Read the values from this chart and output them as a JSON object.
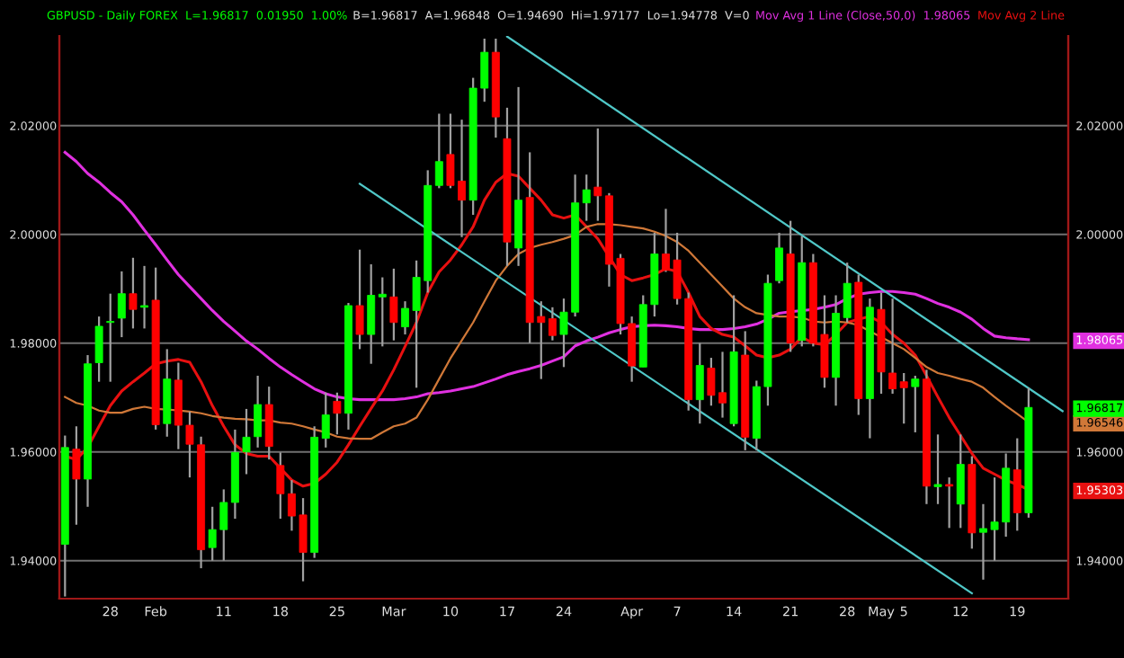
{
  "chart_data": {
    "type": "candlestick",
    "title": "GBPUSD - Daily FOREX  L=1.96817  0.01950  1.00%",
    "subtitle": "B=1.96817  A=1.96848  O=1.94690  Hi=1.97177  Lo=1.94778  V=0",
    "categories": [
      null,
      null,
      null,
      null,
      "28",
      null,
      null,
      null,
      "Feb",
      null,
      null,
      null,
      null,
      null,
      "11",
      null,
      null,
      null,
      null,
      "18",
      null,
      null,
      null,
      null,
      "25",
      null,
      null,
      null,
      null,
      "Mar",
      null,
      null,
      null,
      null,
      "10",
      null,
      null,
      null,
      null,
      "17",
      null,
      null,
      null,
      null,
      "24",
      null,
      null,
      null,
      null,
      null,
      "Apr",
      null,
      null,
      null,
      "7",
      null,
      null,
      null,
      null,
      "14",
      null,
      null,
      null,
      null,
      "21",
      null,
      null,
      null,
      null,
      "28",
      null,
      null,
      "May",
      null,
      "5",
      null,
      null,
      null,
      null,
      "12",
      null,
      null,
      null,
      null,
      "19",
      null,
      null,
      null,
      null
    ],
    "ohlc": [
      [
        1.943,
        1.963,
        1.9334,
        1.9608
      ],
      [
        1.9605,
        1.9647,
        1.9466,
        1.955
      ],
      [
        1.955,
        1.9778,
        1.9499,
        1.9762
      ],
      [
        1.9764,
        1.9849,
        1.9729,
        1.9831
      ],
      [
        1.9838,
        1.9891,
        1.9729,
        1.984
      ],
      [
        1.9846,
        1.9932,
        1.9811,
        1.9891
      ],
      [
        1.9891,
        1.9957,
        1.9827,
        1.9862
      ],
      [
        1.9866,
        1.9942,
        1.9827,
        1.9869
      ],
      [
        1.9879,
        1.9939,
        1.9641,
        1.965
      ],
      [
        1.9652,
        1.9789,
        1.9628,
        1.9734
      ],
      [
        1.9732,
        1.9764,
        1.9605,
        1.9649
      ],
      [
        1.9649,
        1.9674,
        1.9553,
        1.9614
      ],
      [
        1.9613,
        1.9628,
        1.9386,
        1.942
      ],
      [
        1.9424,
        1.9499,
        1.94,
        1.9457
      ],
      [
        1.9457,
        1.9531,
        1.94,
        1.9507
      ],
      [
        1.9507,
        1.9641,
        1.9477,
        1.9599
      ],
      [
        1.96,
        1.9679,
        1.9559,
        1.9627
      ],
      [
        1.9628,
        1.974,
        1.9608,
        1.9687
      ],
      [
        1.9687,
        1.972,
        1.9586,
        1.961
      ],
      [
        1.9575,
        1.9599,
        1.9477,
        1.9523
      ],
      [
        1.9523,
        1.9548,
        1.9455,
        1.9482
      ],
      [
        1.9484,
        1.9515,
        1.9362,
        1.9415
      ],
      [
        1.9415,
        1.9647,
        1.9405,
        1.9627
      ],
      [
        1.9625,
        1.9709,
        1.9608,
        1.9668
      ],
      [
        1.9693,
        1.9709,
        1.9632,
        1.9671
      ],
      [
        1.9671,
        1.9874,
        1.9641,
        1.9869
      ],
      [
        1.9869,
        1.9972,
        1.9789,
        1.9816
      ],
      [
        1.9816,
        1.9945,
        1.9762,
        1.9888
      ],
      [
        1.9885,
        1.9921,
        1.9794,
        1.989
      ],
      [
        1.9885,
        1.9937,
        1.9805,
        1.9838
      ],
      [
        1.983,
        1.9877,
        1.9816,
        1.9864
      ],
      [
        1.986,
        1.9952,
        1.9718,
        1.9921
      ],
      [
        1.9915,
        2.0118,
        1.9893,
        2.009
      ],
      [
        2.009,
        2.0222,
        2.0085,
        2.0134
      ],
      [
        2.0147,
        2.0222,
        2.0085,
        2.009
      ],
      [
        2.0098,
        2.0211,
        1.9995,
        2.0063
      ],
      [
        2.0063,
        2.0288,
        2.0036,
        2.0269
      ],
      [
        2.0269,
        2.036,
        2.0244,
        2.0335
      ],
      [
        2.0335,
        2.036,
        2.0178,
        2.0216
      ],
      [
        2.0176,
        2.0233,
        1.9942,
        1.9986
      ],
      [
        1.9975,
        2.0271,
        1.9942,
        2.0063
      ],
      [
        2.0068,
        2.0151,
        1.98,
        1.9838
      ],
      [
        1.9849,
        1.9877,
        1.9734,
        1.9838
      ],
      [
        1.9845,
        1.9866,
        1.9805,
        1.9814
      ],
      [
        1.9816,
        1.9882,
        1.9756,
        1.9857
      ],
      [
        1.9857,
        2.011,
        1.9849,
        2.0058
      ],
      [
        2.0058,
        2.011,
        2.0025,
        2.0082
      ],
      [
        2.0087,
        2.0195,
        2.0025,
        2.0071
      ],
      [
        2.0071,
        2.0076,
        1.9904,
        1.9945
      ],
      [
        1.9956,
        1.9964,
        1.9816,
        1.9836
      ],
      [
        1.9836,
        1.9849,
        1.9729,
        1.9758
      ],
      [
        1.9756,
        1.9888,
        1.9756,
        1.9871
      ],
      [
        1.9871,
        2.0003,
        1.9849,
        1.9964
      ],
      [
        1.9964,
        2.0047,
        1.9931,
        1.9934
      ],
      [
        1.9953,
        2.0003,
        1.9871,
        1.9882
      ],
      [
        1.9882,
        1.9893,
        1.9676,
        1.9696
      ],
      [
        1.9696,
        1.98,
        1.9652,
        1.9759
      ],
      [
        1.9754,
        1.9773,
        1.9685,
        1.9704
      ],
      [
        1.9709,
        1.9784,
        1.9663,
        1.969
      ],
      [
        1.9652,
        1.9888,
        1.9647,
        1.9784
      ],
      [
        1.9778,
        1.9822,
        1.9603,
        1.9627
      ],
      [
        1.9625,
        1.9731,
        1.9603,
        1.972
      ],
      [
        1.972,
        1.9926,
        1.9685,
        1.991
      ],
      [
        1.9915,
        2.0003,
        1.991,
        1.9975
      ],
      [
        1.9964,
        2.0025,
        1.9784,
        1.98
      ],
      [
        1.9805,
        1.9997,
        1.9794,
        1.9948
      ],
      [
        1.9948,
        1.9964,
        1.9794,
        1.98
      ],
      [
        1.9816,
        1.9888,
        1.9718,
        1.9737
      ],
      [
        1.9737,
        1.9888,
        1.9685,
        1.9855
      ],
      [
        1.9847,
        1.9948,
        1.9838,
        1.991
      ],
      [
        1.9912,
        1.9926,
        1.9668,
        1.9698
      ],
      [
        1.9698,
        1.9882,
        1.9625,
        1.9866
      ],
      [
        1.9862,
        1.9893,
        1.9707,
        1.9747
      ],
      [
        1.9745,
        1.9882,
        1.9707,
        1.9716
      ],
      [
        1.9729,
        1.9745,
        1.9652,
        1.9718
      ],
      [
        1.972,
        1.974,
        1.9636,
        1.9734
      ],
      [
        1.9734,
        1.9751,
        1.9504,
        1.9537
      ],
      [
        1.9536,
        1.9632,
        1.9504,
        1.954
      ],
      [
        1.954,
        1.9553,
        1.946,
        1.9537
      ],
      [
        1.9504,
        1.9632,
        1.946,
        1.9577
      ],
      [
        1.9577,
        1.9592,
        1.9422,
        1.9451
      ],
      [
        1.9452,
        1.9504,
        1.9365,
        1.9459
      ],
      [
        1.9457,
        1.9553,
        1.94,
        1.9471
      ],
      [
        1.9471,
        1.9597,
        1.9444,
        1.957
      ],
      [
        1.9567,
        1.9625,
        1.9455,
        1.9488
      ],
      [
        1.9488,
        1.97177,
        1.9479,
        1.96817
      ],
      null,
      null,
      null
    ],
    "series": [
      {
        "type": "line",
        "name": "Mov Avg 1 Line (Close,50,0)",
        "color": "#e030e0",
        "values": [
          2.0151,
          2.0134,
          2.0112,
          2.0096,
          2.0077,
          2.006,
          2.0036,
          2.0008,
          1.9981,
          1.9953,
          1.9926,
          1.9904,
          1.9882,
          1.986,
          1.984,
          1.9822,
          1.9804,
          1.9789,
          1.9772,
          1.9756,
          1.9742,
          1.9729,
          1.9716,
          1.9707,
          1.9701,
          1.9698,
          1.9696,
          1.9696,
          1.9696,
          1.9696,
          1.9698,
          1.9701,
          1.9707,
          1.9709,
          1.9712,
          1.9716,
          1.972,
          1.9727,
          1.9734,
          1.9742,
          1.9748,
          1.9753,
          1.9759,
          1.9767,
          1.9775,
          1.9795,
          1.9804,
          1.9811,
          1.9819,
          1.9825,
          1.983,
          1.9832,
          1.9833,
          1.9832,
          1.983,
          1.9827,
          1.9825,
          1.9825,
          1.9825,
          1.9827,
          1.983,
          1.9835,
          1.9844,
          1.9855,
          1.9858,
          1.986,
          1.9862,
          1.9866,
          1.9871,
          1.9882,
          1.989,
          1.9893,
          1.9895,
          1.9895,
          1.9893,
          1.989,
          1.9882,
          1.9873,
          1.9866,
          1.9857,
          1.9844,
          1.9827,
          1.9813,
          1.981,
          1.9808,
          1.98065,
          null,
          null,
          null
        ]
      },
      {
        "type": "line",
        "name": "Mov Avg 2 Line",
        "color": "#e81010",
        "values": [
          1.9592,
          1.9586,
          1.9608,
          1.9647,
          1.9685,
          1.9712,
          1.9729,
          1.9745,
          1.9762,
          1.9767,
          1.977,
          1.9765,
          1.9729,
          1.9685,
          1.9647,
          1.9613,
          1.9597,
          1.9592,
          1.9592,
          1.957,
          1.9548,
          1.9537,
          1.9542,
          1.9559,
          1.9581,
          1.9613,
          1.9647,
          1.968,
          1.9712,
          1.9751,
          1.9794,
          1.9838,
          1.9893,
          1.9931,
          1.9953,
          1.9981,
          2.0014,
          2.0063,
          2.0096,
          2.0112,
          2.0107,
          2.0085,
          2.0063,
          2.0036,
          2.003,
          2.0036,
          2.0014,
          1.9992,
          1.9959,
          1.9926,
          1.9915,
          1.992,
          1.9926,
          1.9937,
          1.9932,
          1.9893,
          1.9849,
          1.9827,
          1.9816,
          1.9811,
          1.9795,
          1.9778,
          1.9773,
          1.9778,
          1.9789,
          1.9811,
          1.98,
          1.9797,
          1.9816,
          1.9838,
          1.9844,
          1.9849,
          1.9838,
          1.9816,
          1.98,
          1.9778,
          1.974,
          1.9701,
          1.9663,
          1.963,
          1.9597,
          1.957,
          1.9559,
          1.9548,
          1.954,
          1.95303,
          null,
          null,
          null
        ]
      },
      {
        "type": "line",
        "color": "#d07838",
        "values": [
          1.9701,
          1.969,
          1.9685,
          1.9676,
          1.9672,
          1.9672,
          1.9679,
          1.9683,
          1.9679,
          1.9678,
          1.9676,
          1.9674,
          1.9671,
          1.9666,
          1.9663,
          1.9661,
          1.966,
          1.9658,
          1.9658,
          1.9654,
          1.9652,
          1.9647,
          1.9641,
          1.9636,
          1.9628,
          1.9625,
          1.9624,
          1.9624,
          1.9636,
          1.9647,
          1.9652,
          1.9663,
          1.9696,
          1.9734,
          1.9772,
          1.9805,
          1.9838,
          1.9877,
          1.9915,
          1.9942,
          1.9964,
          1.9975,
          1.9981,
          1.9986,
          1.9992,
          1.9999,
          2.0014,
          2.0019,
          2.0019,
          2.0017,
          2.0014,
          2.0011,
          2.0005,
          1.9997,
          1.9986,
          1.997,
          1.9948,
          1.9926,
          1.9904,
          1.9882,
          1.9866,
          1.9855,
          1.9852,
          1.9849,
          1.9849,
          1.9847,
          1.984,
          1.9838,
          1.984,
          1.9838,
          1.9833,
          1.9822,
          1.9811,
          1.98,
          1.9789,
          1.9773,
          1.9756,
          1.9745,
          1.974,
          1.9734,
          1.9729,
          1.9718,
          1.9701,
          1.9685,
          1.967,
          1.96546,
          null,
          null,
          null
        ]
      },
      {
        "type": "line",
        "color": "#50c8c8",
        "values": [
          null,
          null,
          null,
          null,
          null,
          null,
          null,
          null,
          null,
          null,
          null,
          null,
          null,
          null,
          null,
          null,
          null,
          null,
          null,
          null,
          null,
          null,
          null,
          null,
          null,
          null,
          null,
          null,
          null,
          null,
          null,
          null,
          null,
          null,
          null,
          null,
          null,
          null,
          null,
          2.0364,
          null,
          null,
          null,
          null,
          null,
          null,
          null,
          null,
          null,
          null,
          null,
          null,
          null,
          null,
          null,
          null,
          null,
          null,
          null,
          null,
          null,
          null,
          null,
          null,
          null,
          null,
          null,
          null,
          null,
          null,
          null,
          null,
          null,
          null,
          null,
          null,
          null,
          null,
          null,
          null,
          null,
          null,
          null,
          null,
          null,
          null,
          null,
          null,
          1.9675
        ]
      },
      {
        "type": "line",
        "color": "#50c8c8",
        "values": [
          null,
          null,
          null,
          null,
          null,
          null,
          null,
          null,
          null,
          null,
          null,
          null,
          null,
          null,
          null,
          null,
          null,
          null,
          null,
          null,
          null,
          null,
          null,
          null,
          null,
          null,
          2.0093,
          null,
          null,
          null,
          null,
          null,
          null,
          null,
          null,
          null,
          null,
          null,
          null,
          null,
          null,
          null,
          null,
          null,
          null,
          null,
          null,
          null,
          null,
          null,
          null,
          null,
          null,
          null,
          null,
          null,
          null,
          null,
          null,
          null,
          null,
          null,
          null,
          null,
          null,
          null,
          null,
          null,
          null,
          null,
          null,
          null,
          null,
          null,
          null,
          null,
          null,
          null,
          null,
          null,
          1.934,
          null,
          null,
          null,
          null,
          null,
          null,
          null,
          null
        ]
      }
    ],
    "ylim": [
      1.933,
      2.0365
    ],
    "yticks": [
      {
        "value": 1.94,
        "label": "1.94000"
      },
      {
        "value": 1.96,
        "label": "1.96000"
      },
      {
        "value": 1.98,
        "label": "1.98000"
      },
      {
        "value": 2.0,
        "label": "2.00000"
      },
      {
        "value": 2.02,
        "label": "2.02000"
      }
    ],
    "y2lim": [
      1.933,
      2.0365
    ],
    "y2ticks": [
      {
        "value": 1.94,
        "label": "1.94000"
      },
      {
        "value": 1.95303,
        "label": "1.95303"
      },
      {
        "value": 1.96,
        "label": "1.96000"
      },
      {
        "value": 1.96546,
        "label": "1.96546"
      },
      {
        "value": 1.96817,
        "label": "1.96817"
      },
      {
        "value": 1.98065,
        "label": "1.98065"
      },
      {
        "value": 2.0,
        "label": "2.00000"
      },
      {
        "value": 2.02,
        "label": "2.02000"
      }
    ],
    "grid": "y",
    "annotations": [
      "1.98065"
    ]
  }
}
